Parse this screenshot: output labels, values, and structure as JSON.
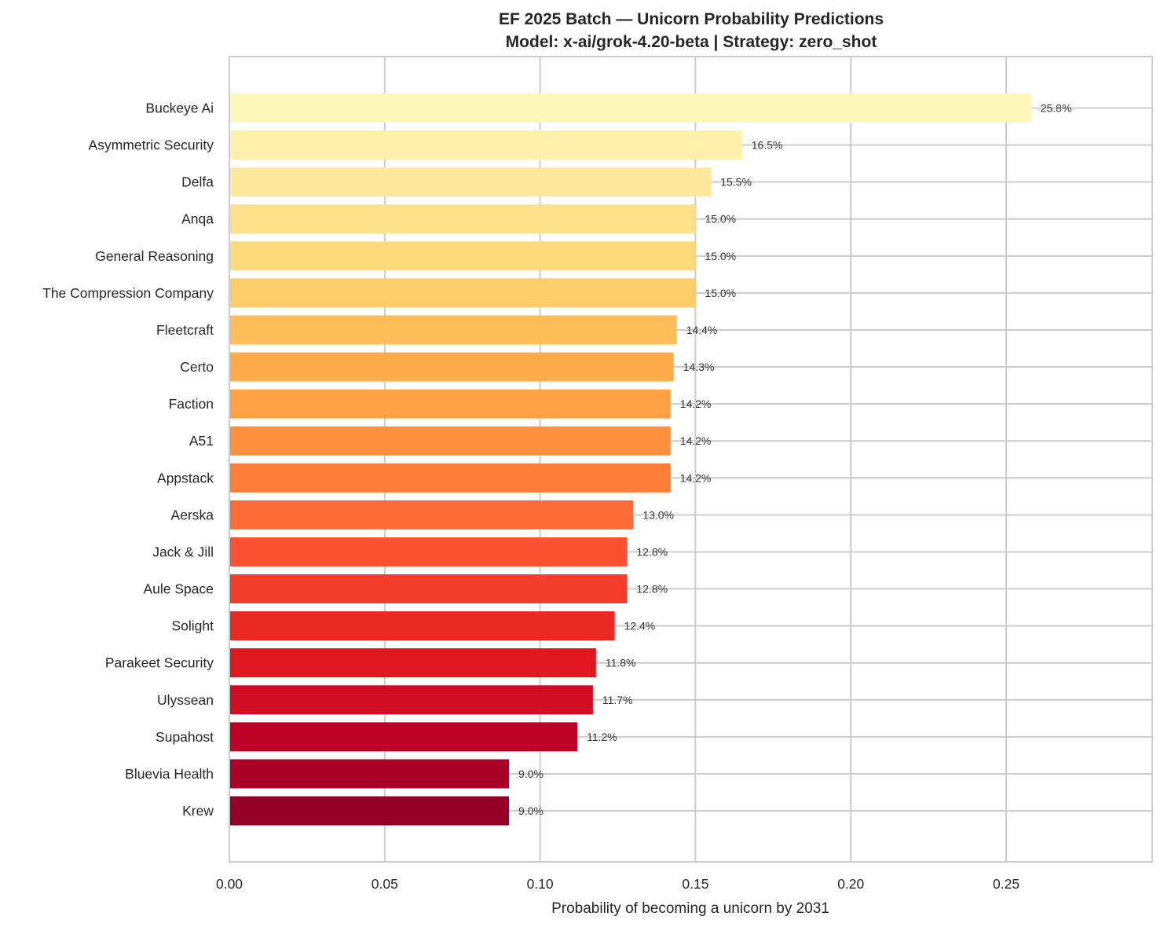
{
  "chart_data": {
    "type": "bar",
    "orientation": "horizontal",
    "title": "EF 2025 Batch — Unicorn Probability Predictions",
    "subtitle": "Model: x-ai/grok-4.20-beta | Strategy: zero_shot",
    "xlabel": "Probability of becoming a unicorn by 2031",
    "ylabel": "",
    "xlim": [
      0,
      0.297
    ],
    "xticks": [
      "0.00",
      "0.05",
      "0.10",
      "0.15",
      "0.20",
      "0.25"
    ],
    "xtick_values": [
      0,
      0.05,
      0.1,
      0.15,
      0.2,
      0.25
    ],
    "grid": true,
    "colormap": "YlOrRd",
    "categories": [
      "Buckeye Ai",
      "Asymmetric Security",
      "Delfa",
      "Anqa",
      "General Reasoning",
      "The Compression Company",
      "Fleetcraft",
      "Certo",
      "Faction",
      "A51",
      "Appstack",
      "Aerska",
      "Jack & Jill",
      "Aule Space",
      "Solight",
      "Parakeet Security",
      "Ulyssean",
      "Supahost",
      "Bluevia Health",
      "Krew"
    ],
    "values": [
      0.258,
      0.165,
      0.155,
      0.15,
      0.15,
      0.15,
      0.144,
      0.143,
      0.142,
      0.142,
      0.142,
      0.13,
      0.128,
      0.128,
      0.124,
      0.118,
      0.117,
      0.112,
      0.09,
      0.09
    ],
    "data_labels": [
      "25.8%",
      "16.5%",
      "15.5%",
      "15.0%",
      "15.0%",
      "15.0%",
      "14.4%",
      "14.3%",
      "14.2%",
      "14.2%",
      "14.2%",
      "13.0%",
      "12.8%",
      "12.8%",
      "12.4%",
      "11.8%",
      "11.7%",
      "11.2%",
      "9.0%",
      "9.0%"
    ],
    "colors": [
      "#fef8bb",
      "#feefaa",
      "#fee89b",
      "#fde18a",
      "#fdda7b",
      "#fdcc6b",
      "#febd59",
      "#feab4b",
      "#fea145",
      "#fd9140",
      "#fd7f39",
      "#fc6b35",
      "#fc5130",
      "#f23d2a",
      "#e92a22",
      "#df171e",
      "#cf0e24",
      "#be0126",
      "#a90028",
      "#940026"
    ]
  }
}
